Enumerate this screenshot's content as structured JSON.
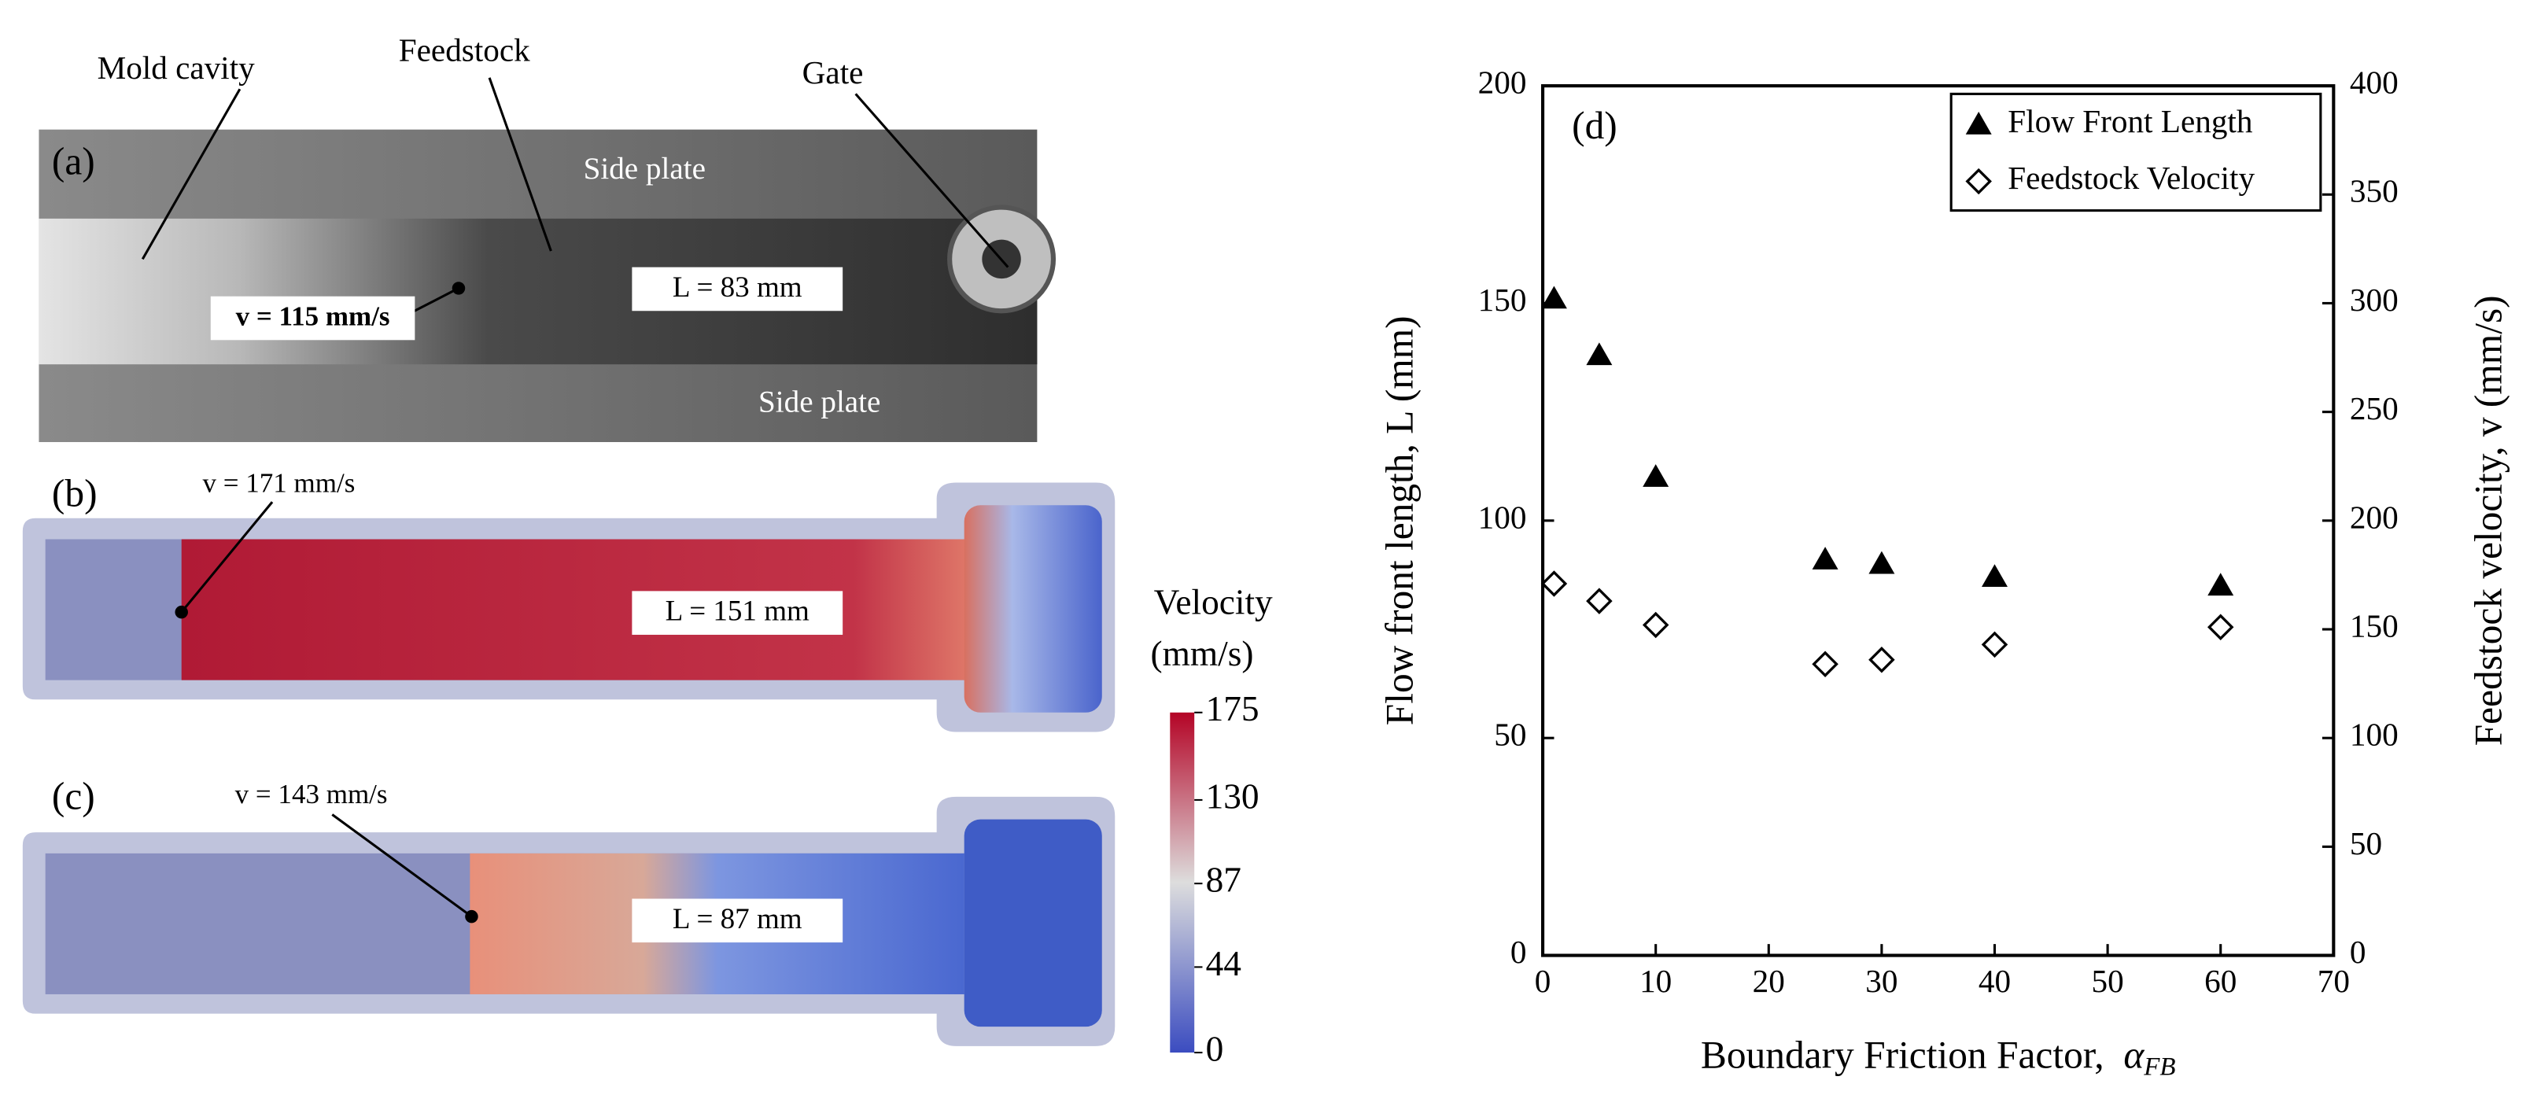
{
  "panels": [
    {
      "label": "(a)",
      "annotations": [
        "Mold cavity",
        "Feedstock",
        "Gate"
      ],
      "plates": [
        "Side plate",
        "Side plate"
      ],
      "velocity": "v = 115 mm/s",
      "length": "L = 83 mm"
    },
    {
      "label": "(b)",
      "velocity": "v = 171 mm/s",
      "length": "L = 151 mm"
    },
    {
      "label": "(c)",
      "velocity": "v = 143 mm/s",
      "length": "L = 87 mm"
    }
  ],
  "colorbar": {
    "title": [
      "Velocity",
      "(mm/s)"
    ],
    "lim": [
      0,
      175
    ],
    "ticks": [
      0,
      44,
      87,
      130,
      175
    ],
    "colors": [
      "#3b4cc0",
      "#dddddd",
      "#b40426"
    ]
  },
  "chart_data": {
    "type": "scatter",
    "panel_label": "(d)",
    "xlabel": "Boundary Friction Factor,",
    "xlabel_symbol": "α",
    "xlabel_subscript": "FB",
    "ylabel": "Flow front length, L (mm)",
    "y2label": "Feedstock velocity, v (mm/s)",
    "x": [
      1,
      5,
      10,
      25,
      30,
      40,
      60
    ],
    "xlim": [
      0,
      70
    ],
    "xticks": [
      0,
      10,
      20,
      30,
      40,
      50,
      60,
      70
    ],
    "ylim": [
      0,
      200
    ],
    "yticks": [
      0,
      50,
      100,
      150,
      200
    ],
    "y2lim": [
      0,
      400
    ],
    "y2ticks": [
      0,
      50,
      100,
      150,
      200,
      250,
      300,
      350,
      400
    ],
    "legend": "upper right",
    "series": [
      {
        "name": "Flow Front Length",
        "marker": "triangle",
        "color": "#000000",
        "values": [
          151,
          138,
          110,
          91,
          90,
          87,
          85
        ]
      },
      {
        "name": "Feedstock Velocity",
        "marker": "diamond",
        "color": "#000000",
        "axis": "y2",
        "values": [
          171,
          163,
          152,
          134,
          136,
          143,
          151
        ]
      }
    ]
  }
}
